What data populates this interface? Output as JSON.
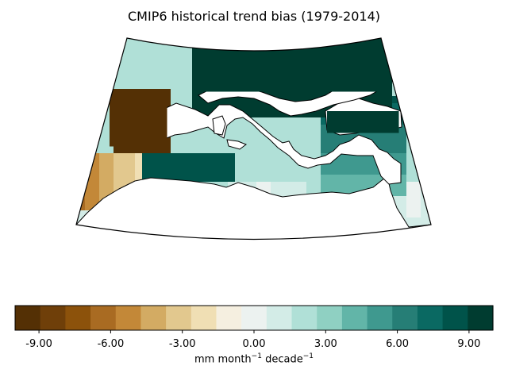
{
  "title": "CMIP6 historical trend bias (1979-2014)",
  "colorbar": {
    "label_text": "mm month",
    "label_exp1": "−1",
    "label_mid": " decade",
    "label_exp2": "−1",
    "min": -10,
    "max": 10,
    "colors": [
      "#543005",
      "#6f3f09",
      "#8c520b",
      "#a96b22",
      "#c38838",
      "#d3ab63",
      "#e2c88e",
      "#f0dfb4",
      "#f5efe0",
      "#ecf2f0",
      "#d3ece7",
      "#b0e0d7",
      "#8fd0c2",
      "#62b5a8",
      "#3f998f",
      "#267e76",
      "#0a6962",
      "#00534a",
      "#003c30"
    ],
    "ticks": [
      {
        "value": -9,
        "label": "-9.00"
      },
      {
        "value": -6,
        "label": "-6.00"
      },
      {
        "value": -3,
        "label": "-3.00"
      },
      {
        "value": 0,
        "label": "0.00"
      },
      {
        "value": 3,
        "label": "3.00"
      },
      {
        "value": 6,
        "label": "6.00"
      },
      {
        "value": 9,
        "label": "9.00"
      }
    ]
  },
  "map": {
    "projection": "conic",
    "region": "Mediterranean",
    "land_color": "#ffffff",
    "coastline_color": "#000000"
  }
}
